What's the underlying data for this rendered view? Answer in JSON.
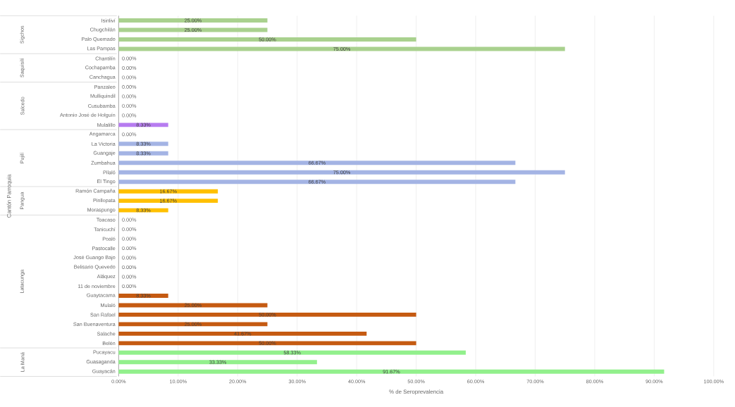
{
  "chart_data": {
    "type": "bar",
    "orientation": "horizontal",
    "xlabel": "% de Seroprevalencia",
    "categories": [
      "Isinliví",
      "Chugchilán",
      "Palo Quemado",
      "Las Pampas",
      "Chantilín",
      "Cochapamba",
      "Canchagua",
      "Panzaleo",
      "Mulliquindil",
      "Cusubamba",
      "Antonio José de Holguín",
      "Mulalillo",
      "Angamarca",
      "La Victoria",
      "Guangaje",
      "Zumbahua",
      "Pilaló",
      "El Tingo",
      "Ramón Campaña",
      "Pinllopata",
      "Moraspungo",
      "Toacaso",
      "Tanicuchí",
      "Poaló",
      "Pastocalle",
      "José Guango Bajo",
      "Belisario Quevedo",
      "Aláquez",
      "11 de noviembre",
      "Guaytacama",
      "Mulaló",
      "San Rafael",
      "San Buenaventura",
      "Salache",
      "Belén",
      "Pucayacu",
      "Guasaganda",
      "Guayacán"
    ],
    "values": [
      25.0,
      25.0,
      50.0,
      75.0,
      0,
      0,
      0,
      0,
      0,
      0,
      0,
      8.33,
      0,
      8.33,
      8.33,
      66.67,
      75.0,
      66.67,
      16.67,
      16.67,
      8.33,
      0,
      0,
      0,
      0,
      0,
      0,
      0,
      0,
      8.33,
      25.0,
      50.0,
      25.0,
      41.67,
      50.0,
      58.33,
      33.33,
      91.67
    ],
    "value_labels": [
      "25.00%",
      "25.00%",
      "50.00%",
      "75.00%",
      "0.00%",
      "0.00%",
      "0.00%",
      "0.00%",
      "0.00%",
      "0.00%",
      "0.00%",
      "8.33%",
      "0.00%",
      "8.33%",
      "8.33%",
      "66.67%",
      "75.00%",
      "66.67%",
      "16.67%",
      "16.67%",
      "8.33%",
      "0.00%",
      "0.00%",
      "0.00%",
      "0.00%",
      "0.00%",
      "0.00%",
      "0.00%",
      "0.00%",
      "8.33%",
      "25.00%",
      "50.00%",
      "25.00%",
      "41.67%",
      "50.00%",
      "58.33%",
      "33.33%",
      "91.67%"
    ],
    "colors": [
      "#a9d18e",
      "#a9d18e",
      "#a9d18e",
      "#a9d18e",
      "#c9c9c9",
      "#c9c9c9",
      "#c9c9c9",
      "#b77cf0",
      "#b77cf0",
      "#b77cf0",
      "#b77cf0",
      "#b77cf0",
      "#a4b4e4",
      "#a4b4e4",
      "#a4b4e4",
      "#a4b4e4",
      "#a4b4e4",
      "#a4b4e4",
      "#ffc000",
      "#ffc000",
      "#ffc000",
      "#c55a11",
      "#c55a11",
      "#c55a11",
      "#c55a11",
      "#c55a11",
      "#c55a11",
      "#c55a11",
      "#c55a11",
      "#c55a11",
      "#c55a11",
      "#c55a11",
      "#c55a11",
      "#c55a11",
      "#c55a11",
      "#92f08c",
      "#92f08c",
      "#92f08c"
    ],
    "annotations": [
      "Sigchos",
      "Saquisilí",
      "Salcedo",
      "Pujilí",
      "Pangua",
      "Latacunga",
      "La Maná",
      "Cantón Parroquia"
    ],
    "xlim": [
      0,
      100
    ],
    "xticks": [
      {
        "value": 0,
        "label": "0.00%"
      },
      {
        "value": 10,
        "label": "10.00%"
      },
      {
        "value": 20,
        "label": "20.00%"
      },
      {
        "value": 30,
        "label": "30.00%"
      },
      {
        "value": 40,
        "label": "40.00%"
      },
      {
        "value": 50,
        "label": "50.00%"
      },
      {
        "value": 60,
        "label": "60.00%"
      },
      {
        "value": 70,
        "label": "70.00%"
      },
      {
        "value": 80,
        "label": "80.00%"
      },
      {
        "value": 90,
        "label": "90.00%"
      },
      {
        "value": 100,
        "label": "100.00%"
      }
    ],
    "grid": "x"
  }
}
